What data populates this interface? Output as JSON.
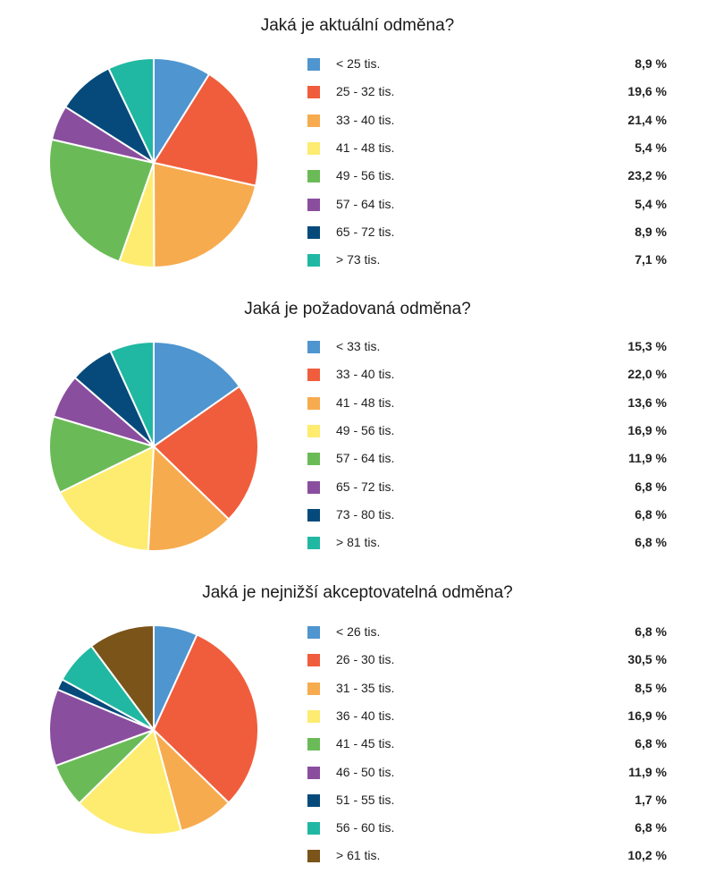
{
  "chart_data": [
    {
      "type": "pie",
      "title": "Jaká je aktuální odměna?",
      "categories": [
        "< 25 tis.",
        "25 - 32 tis.",
        "33 - 40 tis.",
        "41 - 48 tis.",
        "49 - 56 tis.",
        "57 - 64 tis.",
        "65 - 72 tis.",
        "> 73 tis."
      ],
      "values": [
        8.9,
        19.6,
        21.4,
        5.4,
        23.2,
        5.4,
        8.9,
        7.1
      ],
      "value_labels": [
        "8,9 %",
        "19,6 %",
        "21,4 %",
        "5,4 %",
        "23,2 %",
        "5,4 %",
        "8,9 %",
        "7,1 %"
      ],
      "colors": [
        "#4f95d0",
        "#f05d3c",
        "#f7ab4f",
        "#fdec6f",
        "#6abb57",
        "#8a4e9e",
        "#054a7a",
        "#20b8a2"
      ]
    },
    {
      "type": "pie",
      "title": "Jaká je požadovaná odměna?",
      "categories": [
        "< 33 tis.",
        "33 - 40 tis.",
        "41 - 48 tis.",
        "49 - 56 tis.",
        "57 - 64 tis.",
        "65 - 72 tis.",
        "73 - 80 tis.",
        "> 81 tis."
      ],
      "values": [
        15.3,
        22.0,
        13.6,
        16.9,
        11.9,
        6.8,
        6.8,
        6.8
      ],
      "value_labels": [
        "15,3 %",
        "22,0 %",
        "13,6 %",
        "16,9 %",
        "11,9 %",
        "6,8 %",
        "6,8 %",
        "6,8 %"
      ],
      "colors": [
        "#4f95d0",
        "#f05d3c",
        "#f7ab4f",
        "#fdec6f",
        "#6abb57",
        "#8a4e9e",
        "#054a7a",
        "#20b8a2"
      ]
    },
    {
      "type": "pie",
      "title": "Jaká je nejnižší akceptovatelná odměna?",
      "categories": [
        "< 26 tis.",
        "26 - 30 tis.",
        "31 - 35 tis.",
        "36 - 40 tis.",
        "41 - 45 tis.",
        "46 - 50 tis.",
        "51 - 55 tis.",
        "56 - 60 tis.",
        "> 61 tis."
      ],
      "values": [
        6.8,
        30.5,
        8.5,
        16.9,
        6.8,
        11.9,
        1.7,
        6.8,
        10.2
      ],
      "value_labels": [
        "6,8 %",
        "30,5 %",
        "8,5 %",
        "16,9 %",
        "6,8 %",
        "11,9 %",
        "1,7 %",
        "6,8 %",
        "10,2 %"
      ],
      "colors": [
        "#4f95d0",
        "#f05d3c",
        "#f7ab4f",
        "#fdec6f",
        "#6abb57",
        "#8a4e9e",
        "#054a7a",
        "#20b8a2",
        "#7a5419"
      ]
    }
  ]
}
